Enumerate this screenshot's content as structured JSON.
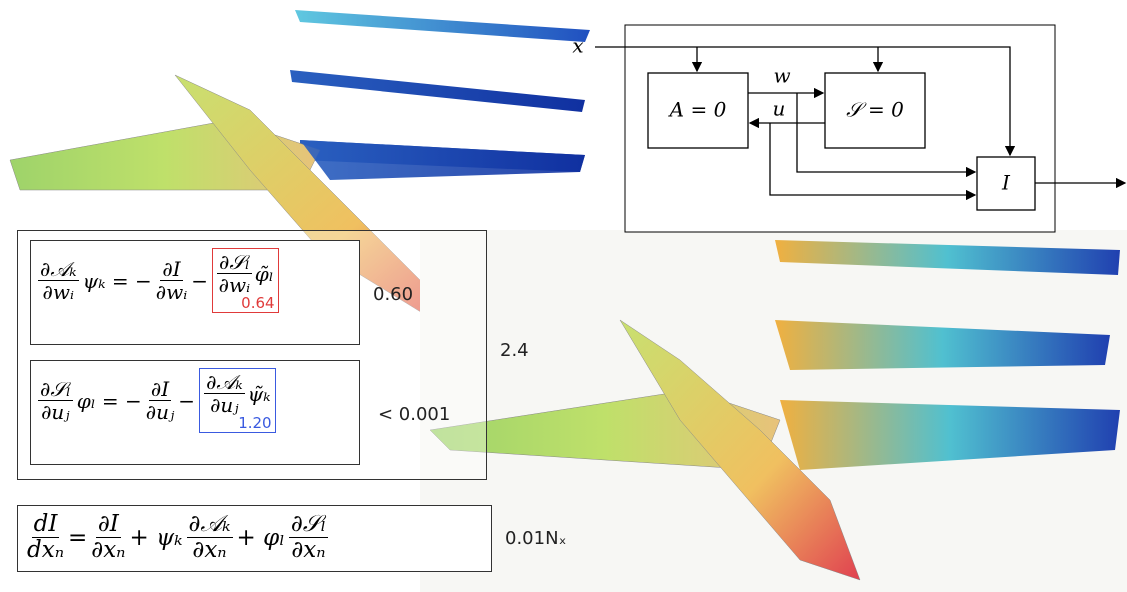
{
  "diagram": {
    "input": "x",
    "blocks": [
      "A = 0",
      "𝒮 = 0",
      "I"
    ],
    "arrow_labels": [
      "w",
      "u"
    ]
  },
  "adjoint_equations": [
    {
      "terms": [
        {
          "num": "∂𝒜ₖ",
          "den": "∂wᵢ"
        },
        "ψₖ = −",
        {
          "num": "∂I",
          "den": "∂wᵢ"
        },
        "−"
      ],
      "highlight": {
        "terms": [
          {
            "num": "∂𝒮ₗ",
            "den": "∂wᵢ"
          },
          "φ̃ₗ"
        ],
        "value": "0.64",
        "color": "#e03a3a"
      },
      "value": "0.60"
    },
    {
      "terms": [
        {
          "num": "∂𝒮ₗ",
          "den": "∂uⱼ"
        },
        "φₗ = −",
        {
          "num": "∂I",
          "den": "∂uⱼ"
        },
        "−"
      ],
      "highlight": {
        "terms": [
          {
            "num": "∂𝒜ₖ",
            "den": "∂uⱼ"
          },
          "ψ̃ₖ"
        ],
        "value": "1.20",
        "color": "#3a5ae0"
      },
      "value": "< 0.001"
    }
  ],
  "adjoint_group_value": "2.4",
  "total_derivative": {
    "terms": [
      {
        "num": "dI",
        "den": "dxₙ"
      },
      "=",
      {
        "num": "∂I",
        "den": "∂xₙ"
      },
      "+ ψₖ",
      {
        "num": "∂𝒜ₖ",
        "den": "∂xₙ"
      },
      "+ φₗ",
      {
        "num": "∂𝒮ₗ",
        "den": "∂xₙ"
      }
    ],
    "value": "0.01Nₓ"
  }
}
